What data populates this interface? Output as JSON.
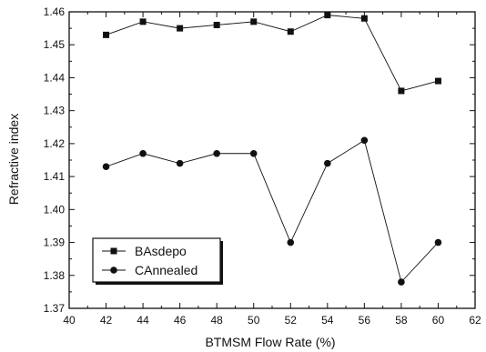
{
  "chart_data": {
    "type": "line",
    "title": "",
    "xlabel": "BTMSM Flow Rate (%)",
    "ylabel": "Refractive index",
    "xlim": [
      40,
      62
    ],
    "ylim": [
      1.37,
      1.46
    ],
    "x_ticks": [
      "40",
      "42",
      "44",
      "46",
      "48",
      "50",
      "52",
      "54",
      "56",
      "58",
      "60",
      "62"
    ],
    "y_ticks": [
      "1.37",
      "1.38",
      "1.39",
      "1.40",
      "1.41",
      "1.42",
      "1.43",
      "1.44",
      "1.45",
      "1.46"
    ],
    "grid": false,
    "legend_position": "bottom-left",
    "series": [
      {
        "name": "BAsdepo",
        "marker": "square",
        "color": "#111111",
        "x": [
          42,
          44,
          46,
          48,
          50,
          52,
          54,
          56,
          58,
          60
        ],
        "y": [
          1.453,
          1.457,
          1.455,
          1.456,
          1.457,
          1.454,
          1.459,
          1.458,
          1.436,
          1.439
        ]
      },
      {
        "name": "CAnnealed",
        "marker": "circle",
        "color": "#111111",
        "x": [
          42,
          44,
          46,
          48,
          50,
          52,
          54,
          56,
          58,
          60
        ],
        "y": [
          1.413,
          1.417,
          1.414,
          1.417,
          1.417,
          1.39,
          1.414,
          1.421,
          1.378,
          1.39
        ]
      }
    ]
  }
}
